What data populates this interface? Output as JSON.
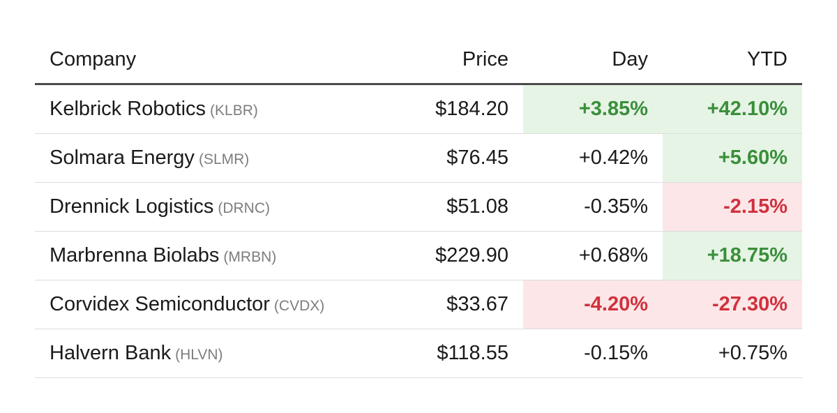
{
  "chart_data": {
    "type": "table",
    "columns": [
      "Company",
      "Price",
      "Day",
      "YTD"
    ],
    "rows": [
      {
        "company": "Kelbrick Robotics",
        "ticker": "(KLBR)",
        "price": "$184.20",
        "day": "+3.85%",
        "ytd": "+42.10%",
        "day_style": "pos-strong",
        "ytd_style": "pos-strong"
      },
      {
        "company": "Solmara Energy",
        "ticker": "(SLMR)",
        "price": "$76.45",
        "day": "+0.42%",
        "ytd": "+5.60%",
        "day_style": "neutral",
        "ytd_style": "pos-strong"
      },
      {
        "company": "Drennick Logistics",
        "ticker": "(DRNC)",
        "price": "$51.08",
        "day": "-0.35%",
        "ytd": "-2.15%",
        "day_style": "neutral",
        "ytd_style": "neg-strong"
      },
      {
        "company": "Marbrenna Biolabs",
        "ticker": "(MRBN)",
        "price": "$229.90",
        "day": "+0.68%",
        "ytd": "+18.75%",
        "day_style": "neutral",
        "ytd_style": "pos-strong"
      },
      {
        "company": "Corvidex Semiconductor",
        "ticker": "(CVDX)",
        "price": "$33.67",
        "day": "-4.20%",
        "ytd": "-27.30%",
        "day_style": "neg-strong",
        "ytd_style": "neg-strong"
      },
      {
        "company": "Halvern Bank",
        "ticker": "(HLVN)",
        "price": "$118.55",
        "day": "-0.15%",
        "ytd": "+0.75%",
        "day_style": "neutral",
        "ytd_style": "neutral"
      }
    ],
    "colors": {
      "positive_text": "#3a8f3a",
      "positive_bg": "#e6f4e6",
      "negative_text": "#d0313d",
      "negative_bg": "#fce6e8"
    }
  }
}
